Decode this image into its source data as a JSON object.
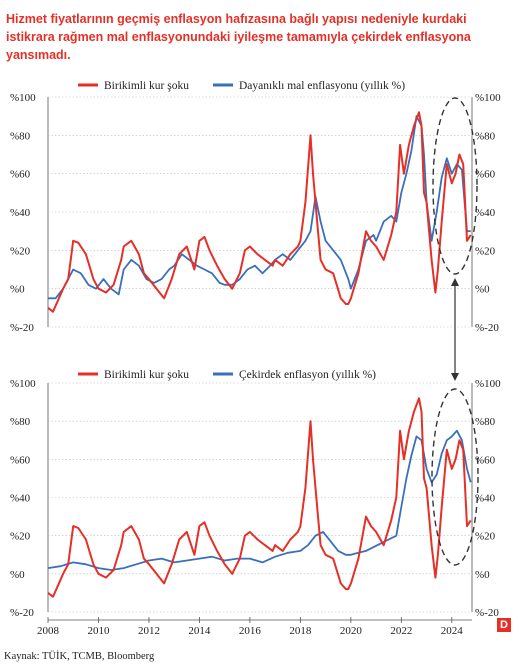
{
  "title": "Hizmet fiyatlarının geçmiş enflasyon hafızasına bağlı yapısı nedeniyle kurdaki istikrara rağmen mal enflasyonundaki iyileşme tamamıyla çekirdek enflasyona yansımadı.",
  "source": "Kaynak: TÜİK, TCMB, Bloomberg",
  "badge": "D",
  "colors": {
    "red": "#e63027",
    "blue": "#3a6fbd",
    "grid": "#bbbbbb",
    "text": "#222222"
  },
  "chart_data": [
    {
      "type": "line",
      "title": "",
      "xlabel": "",
      "ylabel": "",
      "xlim": [
        2008,
        2024.8
      ],
      "ylim": [
        -20,
        100
      ],
      "yticks": [
        -20,
        0,
        20,
        40,
        60,
        80,
        100
      ],
      "ytick_labels": [
        "%-20",
        "%0",
        "%20",
        "%40",
        "%60",
        "%80",
        "%100"
      ],
      "legend_position": "top",
      "series": [
        {
          "name": "Birikimli kur şoku",
          "color": "#e63027",
          "x": [
            2008.0,
            2008.2,
            2008.4,
            2008.6,
            2008.8,
            2009.0,
            2009.2,
            2009.5,
            2009.8,
            2010.0,
            2010.3,
            2010.6,
            2010.9,
            2011.0,
            2011.3,
            2011.6,
            2011.8,
            2012.0,
            2012.3,
            2012.6,
            2012.9,
            2013.2,
            2013.5,
            2013.8,
            2014.0,
            2014.2,
            2014.4,
            2014.7,
            2015.0,
            2015.3,
            2015.6,
            2015.8,
            2016.0,
            2016.3,
            2016.6,
            2016.9,
            2017.0,
            2017.3,
            2017.6,
            2017.9,
            2018.0,
            2018.2,
            2018.4,
            2018.5,
            2018.7,
            2018.8,
            2019.0,
            2019.3,
            2019.6,
            2019.8,
            2019.9,
            2020.0,
            2020.3,
            2020.6,
            2020.8,
            2021.0,
            2021.3,
            2021.6,
            2021.8,
            2021.95,
            2022.1,
            2022.3,
            2022.5,
            2022.7,
            2022.8,
            2022.9,
            2023.0,
            2023.2,
            2023.35,
            2023.45,
            2023.6,
            2023.8,
            2024.0,
            2024.15,
            2024.3,
            2024.45,
            2024.6,
            2024.75
          ],
          "y": [
            -10,
            -12,
            -6,
            0,
            5,
            25,
            24,
            18,
            5,
            0,
            -2,
            2,
            15,
            22,
            25,
            18,
            8,
            5,
            0,
            -5,
            5,
            18,
            22,
            10,
            25,
            27,
            20,
            12,
            5,
            0,
            8,
            20,
            22,
            18,
            15,
            12,
            15,
            12,
            18,
            22,
            25,
            45,
            80,
            60,
            30,
            15,
            10,
            8,
            -5,
            -8,
            -8,
            -5,
            8,
            30,
            25,
            22,
            15,
            28,
            40,
            75,
            60,
            75,
            85,
            92,
            85,
            50,
            45,
            15,
            -2,
            10,
            35,
            65,
            55,
            60,
            70,
            65,
            25,
            28
          ]
        },
        {
          "name": "Dayanıklı mal enflasyonu (yıllık %)",
          "color": "#3a6fbd",
          "x": [
            2008.0,
            2008.3,
            2008.6,
            2009.0,
            2009.3,
            2009.6,
            2009.9,
            2010.2,
            2010.5,
            2010.8,
            2011.0,
            2011.3,
            2011.6,
            2011.9,
            2012.2,
            2012.5,
            2012.8,
            2013.0,
            2013.3,
            2013.6,
            2013.9,
            2014.2,
            2014.5,
            2014.8,
            2015.0,
            2015.3,
            2015.6,
            2015.9,
            2016.2,
            2016.5,
            2016.8,
            2017.0,
            2017.3,
            2017.6,
            2017.9,
            2018.2,
            2018.4,
            2018.6,
            2018.8,
            2019.0,
            2019.3,
            2019.6,
            2019.9,
            2020.0,
            2020.3,
            2020.6,
            2020.9,
            2021.0,
            2021.3,
            2021.6,
            2021.8,
            2022.0,
            2022.2,
            2022.4,
            2022.6,
            2022.8,
            2022.9,
            2023.0,
            2023.2,
            2023.4,
            2023.6,
            2023.8,
            2024.0,
            2024.2,
            2024.4,
            2024.6,
            2024.75
          ],
          "y": [
            -5,
            -5,
            0,
            10,
            8,
            2,
            0,
            5,
            0,
            -3,
            10,
            15,
            12,
            5,
            3,
            5,
            10,
            12,
            18,
            15,
            12,
            10,
            8,
            3,
            2,
            2,
            5,
            10,
            12,
            8,
            12,
            15,
            18,
            15,
            20,
            25,
            30,
            48,
            35,
            25,
            20,
            15,
            5,
            0,
            10,
            25,
            28,
            25,
            35,
            38,
            35,
            50,
            60,
            72,
            90,
            85,
            70,
            45,
            25,
            40,
            58,
            68,
            60,
            65,
            62,
            30,
            30
          ]
        }
      ]
    },
    {
      "type": "line",
      "title": "",
      "xlabel": "",
      "ylabel": "",
      "xlim": [
        2008,
        2024.8
      ],
      "ylim": [
        -20,
        100
      ],
      "yticks": [
        -20,
        0,
        20,
        40,
        60,
        80,
        100
      ],
      "ytick_labels": [
        "%-20",
        "%0",
        "%20",
        "%40",
        "%60",
        "%80",
        "%100"
      ],
      "xticks": [
        2008,
        2010,
        2012,
        2014,
        2016,
        2018,
        2020,
        2022,
        2024
      ],
      "xtick_labels": [
        "2008",
        "2010",
        "2012",
        "2014",
        "2016",
        "2018",
        "2020",
        "2022",
        "2024"
      ],
      "legend_position": "top",
      "series": [
        {
          "name": "Birikimli kur şoku",
          "color": "#e63027",
          "x": [
            2008.0,
            2008.2,
            2008.4,
            2008.6,
            2008.8,
            2009.0,
            2009.2,
            2009.5,
            2009.8,
            2010.0,
            2010.3,
            2010.6,
            2010.9,
            2011.0,
            2011.3,
            2011.6,
            2011.8,
            2012.0,
            2012.3,
            2012.6,
            2012.9,
            2013.2,
            2013.5,
            2013.8,
            2014.0,
            2014.2,
            2014.4,
            2014.7,
            2015.0,
            2015.3,
            2015.6,
            2015.8,
            2016.0,
            2016.3,
            2016.6,
            2016.9,
            2017.0,
            2017.3,
            2017.6,
            2017.9,
            2018.0,
            2018.2,
            2018.4,
            2018.5,
            2018.7,
            2018.8,
            2019.0,
            2019.3,
            2019.6,
            2019.8,
            2019.9,
            2020.0,
            2020.3,
            2020.6,
            2020.8,
            2021.0,
            2021.3,
            2021.6,
            2021.8,
            2021.95,
            2022.1,
            2022.3,
            2022.5,
            2022.7,
            2022.8,
            2022.9,
            2023.0,
            2023.2,
            2023.35,
            2023.45,
            2023.6,
            2023.8,
            2024.0,
            2024.15,
            2024.3,
            2024.45,
            2024.6,
            2024.75
          ],
          "y": [
            -10,
            -12,
            -6,
            0,
            5,
            25,
            24,
            18,
            5,
            0,
            -2,
            2,
            15,
            22,
            25,
            18,
            8,
            5,
            0,
            -5,
            5,
            18,
            22,
            10,
            25,
            27,
            20,
            12,
            5,
            0,
            8,
            20,
            22,
            18,
            15,
            12,
            15,
            12,
            18,
            22,
            25,
            45,
            80,
            60,
            30,
            15,
            10,
            8,
            -5,
            -8,
            -8,
            -5,
            8,
            30,
            25,
            22,
            15,
            28,
            40,
            75,
            60,
            75,
            85,
            92,
            85,
            50,
            45,
            15,
            -2,
            10,
            35,
            65,
            55,
            60,
            70,
            65,
            25,
            28
          ]
        },
        {
          "name": "Çekirdek enflasyon (yıllık %)",
          "color": "#3a6fbd",
          "x": [
            2008.0,
            2008.5,
            2009.0,
            2009.5,
            2010.0,
            2010.5,
            2011.0,
            2011.5,
            2012.0,
            2012.5,
            2013.0,
            2013.5,
            2014.0,
            2014.5,
            2015.0,
            2015.5,
            2016.0,
            2016.5,
            2017.0,
            2017.5,
            2018.0,
            2018.3,
            2018.6,
            2018.9,
            2019.2,
            2019.5,
            2019.8,
            2020.0,
            2020.3,
            2020.6,
            2020.9,
            2021.2,
            2021.5,
            2021.8,
            2022.0,
            2022.2,
            2022.4,
            2022.6,
            2022.8,
            2023.0,
            2023.2,
            2023.4,
            2023.6,
            2023.8,
            2024.0,
            2024.2,
            2024.4,
            2024.6,
            2024.75
          ],
          "y": [
            3,
            4,
            6,
            5,
            3,
            2,
            3,
            5,
            7,
            8,
            6,
            7,
            8,
            9,
            7,
            8,
            8,
            6,
            9,
            11,
            12,
            15,
            20,
            22,
            17,
            12,
            10,
            10,
            11,
            12,
            14,
            16,
            18,
            20,
            35,
            50,
            62,
            72,
            70,
            55,
            48,
            52,
            63,
            70,
            72,
            75,
            70,
            55,
            48
          ]
        }
      ]
    }
  ]
}
